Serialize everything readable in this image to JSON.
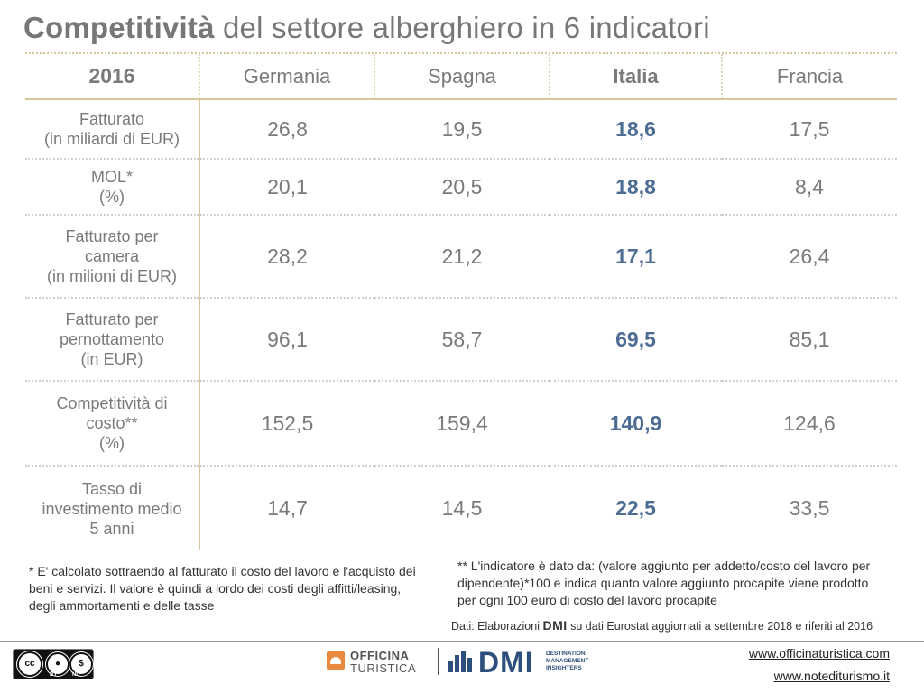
{
  "title": {
    "bold": "Competitività",
    "rest": " del settore alberghiero in 6 indicatori"
  },
  "table": {
    "header": {
      "year": "2016",
      "countries": [
        "Germania",
        "Spagna",
        "Italia",
        "Francia"
      ]
    },
    "rows": [
      {
        "label": [
          "Fatturato",
          "(in miliardi di EUR)"
        ],
        "values": [
          "26,8",
          "19,5",
          "18,6",
          "17,5"
        ]
      },
      {
        "label": [
          "MOL*",
          "(%)"
        ],
        "values": [
          "20,1",
          "20,5",
          "18,8",
          "8,4"
        ]
      },
      {
        "label": [
          "Fatturato per",
          "camera",
          "(in milioni di EUR)"
        ],
        "values": [
          "28,2",
          "21,2",
          "17,1",
          "26,4"
        ]
      },
      {
        "label": [
          "Fatturato per",
          "pernottamento",
          "(in EUR)"
        ],
        "values": [
          "96,1",
          "58,7",
          "69,5",
          "85,1"
        ]
      },
      {
        "label": [
          "Competitività di",
          "costo**",
          "(%)"
        ],
        "values": [
          "152,5",
          "159,4",
          "140,9",
          "124,6"
        ]
      },
      {
        "label": [
          "Tasso di",
          "investimento medio",
          "5 anni"
        ],
        "values": [
          "14,7",
          "14,5",
          "22,5",
          "33,5"
        ]
      }
    ],
    "highlight_column": "Italia",
    "colors": {
      "gold": "#c4a85c",
      "highlight": "#4e6d93",
      "text": "#7a7a7a"
    }
  },
  "notes": {
    "note1": "* E' calcolato sottraendo al fatturato il costo del lavoro e l'acquisto dei beni e servizi. Il valore è quindi a lordo dei costi degli affitti/leasing, degli ammortamenti e delle tasse",
    "note2": "** L'indicatore è dato da: (valore aggiunto per addetto/costo del lavoro per dipendente)*100 e indica quanto valore aggiunto procapite viene prodotto per ogni 100 euro di costo del lavoro procapite"
  },
  "source": {
    "prefix": "Dati: Elaborazioni ",
    "brand": "DMI",
    "suffix": " su dati Eurostat aggiornati a settembre 2018 e riferiti al 2016"
  },
  "footer": {
    "license": {
      "by": "BY",
      "nc": "NC",
      "icon": "creative-commons-by-nc-icon"
    },
    "logo1": {
      "line1": "OFFICINA",
      "line2": "TURISTICA"
    },
    "logo2": {
      "word": "DMI",
      "tagline": [
        "DESTINATION",
        "MANAGEMENT",
        "INSIGHTERS"
      ]
    },
    "links": [
      "www.officinaturistica.com",
      "www.notediturismo.it"
    ]
  }
}
